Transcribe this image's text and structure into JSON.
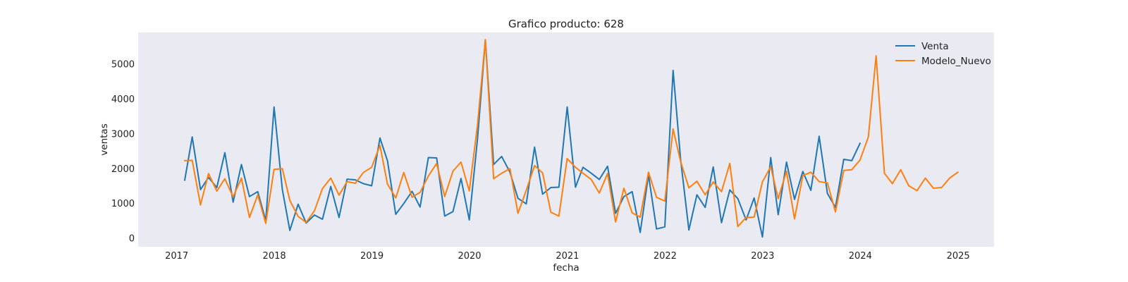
{
  "chart_data": {
    "type": "line",
    "title": "Grafico producto: 628",
    "xlabel": "fecha",
    "ylabel": "ventas",
    "xlim": [
      "2016-08-10",
      "2025-05-15"
    ],
    "ylim": [
      -250,
      5900
    ],
    "x_ticks": [
      {
        "date": "2017-01-01",
        "label": "2017"
      },
      {
        "date": "2018-01-01",
        "label": "2018"
      },
      {
        "date": "2019-01-01",
        "label": "2019"
      },
      {
        "date": "2020-01-01",
        "label": "2020"
      },
      {
        "date": "2021-01-01",
        "label": "2021"
      },
      {
        "date": "2022-01-01",
        "label": "2022"
      },
      {
        "date": "2023-01-01",
        "label": "2023"
      },
      {
        "date": "2024-01-01",
        "label": "2024"
      },
      {
        "date": "2025-01-01",
        "label": "2025"
      }
    ],
    "y_ticks": [
      0,
      1000,
      2000,
      3000,
      4000,
      5000
    ],
    "grid": false,
    "legend_position": "top-right",
    "series": [
      {
        "name": "Venta",
        "color": "#1f77b4",
        "points": [
          [
            "2017-01-31",
            1660
          ],
          [
            "2017-02-28",
            2900
          ],
          [
            "2017-03-31",
            1390
          ],
          [
            "2017-04-30",
            1740
          ],
          [
            "2017-05-31",
            1450
          ],
          [
            "2017-06-30",
            2450
          ],
          [
            "2017-07-31",
            1030
          ],
          [
            "2017-08-31",
            2110
          ],
          [
            "2017-09-30",
            1190
          ],
          [
            "2017-10-31",
            1330
          ],
          [
            "2017-11-30",
            500
          ],
          [
            "2017-12-31",
            3760
          ],
          [
            "2018-01-31",
            1390
          ],
          [
            "2018-02-28",
            220
          ],
          [
            "2018-03-31",
            970
          ],
          [
            "2018-04-30",
            430
          ],
          [
            "2018-05-31",
            660
          ],
          [
            "2018-06-30",
            540
          ],
          [
            "2018-07-31",
            1480
          ],
          [
            "2018-08-31",
            590
          ],
          [
            "2018-09-30",
            1690
          ],
          [
            "2018-10-31",
            1670
          ],
          [
            "2018-11-30",
            1560
          ],
          [
            "2018-12-31",
            1500
          ],
          [
            "2019-01-31",
            2870
          ],
          [
            "2019-02-28",
            2220
          ],
          [
            "2019-03-31",
            680
          ],
          [
            "2019-04-30",
            990
          ],
          [
            "2019-05-31",
            1340
          ],
          [
            "2019-06-30",
            890
          ],
          [
            "2019-07-31",
            2310
          ],
          [
            "2019-08-31",
            2300
          ],
          [
            "2019-09-30",
            630
          ],
          [
            "2019-10-31",
            760
          ],
          [
            "2019-11-30",
            1710
          ],
          [
            "2019-12-31",
            520
          ],
          [
            "2020-01-31",
            2870
          ],
          [
            "2020-02-29",
            5690
          ],
          [
            "2020-03-31",
            2110
          ],
          [
            "2020-04-30",
            2340
          ],
          [
            "2020-05-31",
            1890
          ],
          [
            "2020-06-30",
            1140
          ],
          [
            "2020-07-31",
            980
          ],
          [
            "2020-08-31",
            2610
          ],
          [
            "2020-09-30",
            1260
          ],
          [
            "2020-10-31",
            1450
          ],
          [
            "2020-11-30",
            1460
          ],
          [
            "2020-12-31",
            3760
          ],
          [
            "2021-01-31",
            1460
          ],
          [
            "2021-02-28",
            2030
          ],
          [
            "2021-03-31",
            1860
          ],
          [
            "2021-04-30",
            1680
          ],
          [
            "2021-05-31",
            2060
          ],
          [
            "2021-06-30",
            710
          ],
          [
            "2021-07-31",
            1190
          ],
          [
            "2021-08-31",
            1330
          ],
          [
            "2021-09-30",
            160
          ],
          [
            "2021-10-31",
            1810
          ],
          [
            "2021-11-30",
            260
          ],
          [
            "2021-12-31",
            320
          ],
          [
            "2022-01-31",
            4810
          ],
          [
            "2022-02-28",
            2260
          ],
          [
            "2022-03-31",
            230
          ],
          [
            "2022-04-30",
            1240
          ],
          [
            "2022-05-31",
            880
          ],
          [
            "2022-06-30",
            2040
          ],
          [
            "2022-07-31",
            440
          ],
          [
            "2022-08-31",
            1380
          ],
          [
            "2022-09-30",
            1130
          ],
          [
            "2022-10-31",
            520
          ],
          [
            "2022-11-30",
            1150
          ],
          [
            "2022-12-31",
            30
          ],
          [
            "2023-01-31",
            2310
          ],
          [
            "2023-02-28",
            670
          ],
          [
            "2023-03-31",
            2180
          ],
          [
            "2023-04-30",
            1110
          ],
          [
            "2023-05-31",
            1910
          ],
          [
            "2023-06-30",
            1370
          ],
          [
            "2023-07-31",
            2920
          ],
          [
            "2023-08-31",
            1280
          ],
          [
            "2023-09-30",
            880
          ],
          [
            "2023-10-31",
            2260
          ],
          [
            "2023-11-30",
            2220
          ],
          [
            "2023-12-31",
            2720
          ]
        ]
      },
      {
        "name": "Modelo_Nuevo",
        "color": "#ff7f0e",
        "points": [
          [
            "2017-01-31",
            2220
          ],
          [
            "2017-02-28",
            2230
          ],
          [
            "2017-03-31",
            950
          ],
          [
            "2017-04-30",
            1850
          ],
          [
            "2017-05-31",
            1350
          ],
          [
            "2017-06-30",
            1700
          ],
          [
            "2017-07-31",
            1180
          ],
          [
            "2017-08-31",
            1720
          ],
          [
            "2017-09-30",
            590
          ],
          [
            "2017-10-31",
            1240
          ],
          [
            "2017-11-30",
            420
          ],
          [
            "2017-12-31",
            1970
          ],
          [
            "2018-01-31",
            1990
          ],
          [
            "2018-02-28",
            1080
          ],
          [
            "2018-03-31",
            620
          ],
          [
            "2018-04-30",
            450
          ],
          [
            "2018-05-31",
            780
          ],
          [
            "2018-06-30",
            1420
          ],
          [
            "2018-07-31",
            1720
          ],
          [
            "2018-08-31",
            1230
          ],
          [
            "2018-09-30",
            1620
          ],
          [
            "2018-10-31",
            1570
          ],
          [
            "2018-11-30",
            1880
          ],
          [
            "2018-12-31",
            2030
          ],
          [
            "2019-01-31",
            2660
          ],
          [
            "2019-02-28",
            1550
          ],
          [
            "2019-03-31",
            1150
          ],
          [
            "2019-04-30",
            1880
          ],
          [
            "2019-05-31",
            1170
          ],
          [
            "2019-06-30",
            1310
          ],
          [
            "2019-07-31",
            1780
          ],
          [
            "2019-08-31",
            2140
          ],
          [
            "2019-09-30",
            1190
          ],
          [
            "2019-10-31",
            1920
          ],
          [
            "2019-11-30",
            2180
          ],
          [
            "2019-12-31",
            1350
          ],
          [
            "2020-01-31",
            3270
          ],
          [
            "2020-02-29",
            5690
          ],
          [
            "2020-03-31",
            1700
          ],
          [
            "2020-04-30",
            1860
          ],
          [
            "2020-05-31",
            1990
          ],
          [
            "2020-06-30",
            710
          ],
          [
            "2020-07-31",
            1370
          ],
          [
            "2020-08-31",
            2080
          ],
          [
            "2020-09-30",
            1870
          ],
          [
            "2020-10-31",
            740
          ],
          [
            "2020-11-30",
            630
          ],
          [
            "2020-12-31",
            2280
          ],
          [
            "2021-01-31",
            2030
          ],
          [
            "2021-02-28",
            1860
          ],
          [
            "2021-03-31",
            1680
          ],
          [
            "2021-04-30",
            1290
          ],
          [
            "2021-05-31",
            1850
          ],
          [
            "2021-06-30",
            460
          ],
          [
            "2021-07-31",
            1430
          ],
          [
            "2021-08-31",
            720
          ],
          [
            "2021-09-30",
            600
          ],
          [
            "2021-10-31",
            1890
          ],
          [
            "2021-11-30",
            1170
          ],
          [
            "2021-12-31",
            1060
          ],
          [
            "2022-01-31",
            3130
          ],
          [
            "2022-02-28",
            2200
          ],
          [
            "2022-03-31",
            1440
          ],
          [
            "2022-04-30",
            1630
          ],
          [
            "2022-05-31",
            1240
          ],
          [
            "2022-06-30",
            1610
          ],
          [
            "2022-07-31",
            1330
          ],
          [
            "2022-08-31",
            2140
          ],
          [
            "2022-09-30",
            330
          ],
          [
            "2022-10-31",
            590
          ],
          [
            "2022-11-30",
            600
          ],
          [
            "2022-12-31",
            1610
          ],
          [
            "2023-01-31",
            2050
          ],
          [
            "2023-02-28",
            1130
          ],
          [
            "2023-03-31",
            1920
          ],
          [
            "2023-04-30",
            550
          ],
          [
            "2023-05-31",
            1790
          ],
          [
            "2023-06-30",
            1890
          ],
          [
            "2023-07-31",
            1620
          ],
          [
            "2023-08-31",
            1580
          ],
          [
            "2023-09-30",
            750
          ],
          [
            "2023-10-31",
            1940
          ],
          [
            "2023-11-30",
            1960
          ],
          [
            "2023-12-31",
            2240
          ],
          [
            "2024-01-31",
            2900
          ],
          [
            "2024-02-29",
            5230
          ],
          [
            "2024-03-31",
            1860
          ],
          [
            "2024-04-30",
            1560
          ],
          [
            "2024-05-31",
            1960
          ],
          [
            "2024-06-30",
            1500
          ],
          [
            "2024-07-31",
            1360
          ],
          [
            "2024-08-31",
            1720
          ],
          [
            "2024-09-30",
            1430
          ],
          [
            "2024-10-31",
            1450
          ],
          [
            "2024-11-30",
            1720
          ],
          [
            "2024-12-31",
            1890
          ]
        ]
      }
    ]
  },
  "colors": {
    "plot_background": "#eaeaf2",
    "page_background": "#ffffff",
    "text": "#222222"
  }
}
